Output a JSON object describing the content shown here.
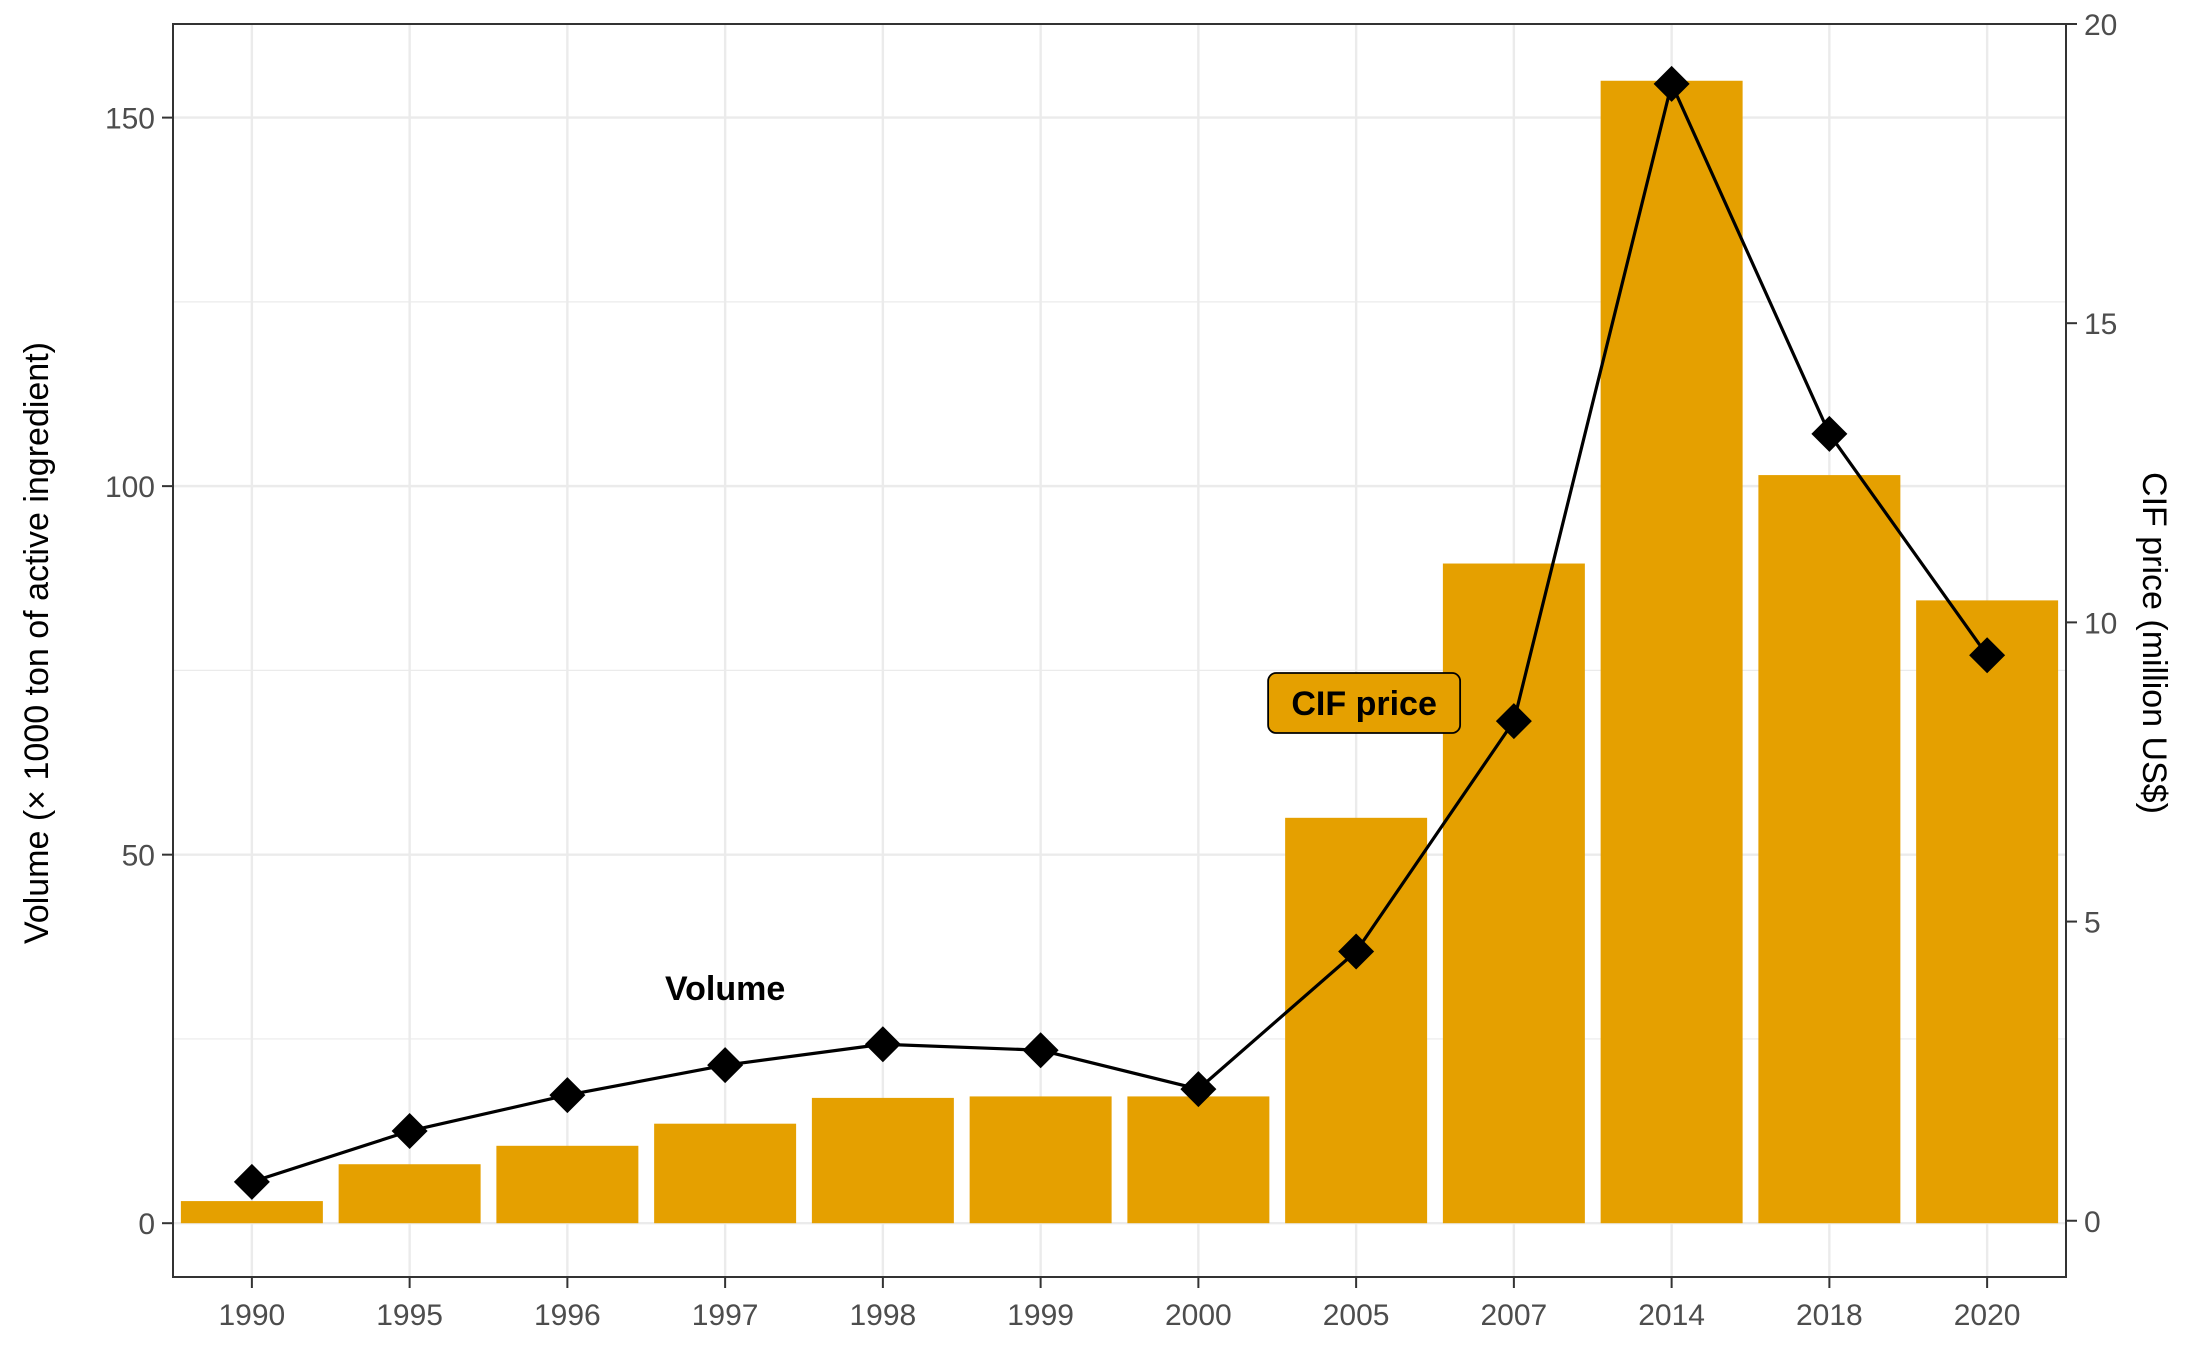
{
  "chart_data": {
    "type": "bar",
    "categories": [
      "1990",
      "1995",
      "1996",
      "1997",
      "1998",
      "1999",
      "2000",
      "2005",
      "2007",
      "2014",
      "2018",
      "2020"
    ],
    "series": [
      {
        "kind": "bar",
        "axis": "left",
        "values": [
          3,
          8,
          10.5,
          13.5,
          17,
          17.2,
          17.2,
          55,
          89.5,
          155,
          101.5,
          84.5
        ]
      },
      {
        "kind": "line",
        "axis": "right",
        "marker": "diamond",
        "values": [
          0.65,
          1.5,
          2.1,
          2.6,
          2.95,
          2.85,
          2.2,
          4.5,
          8.35,
          19.0,
          13.15,
          9.45
        ]
      }
    ],
    "ylabel_left": "Volume (× 1000 ton of active ingredient)",
    "ylabel_right": "CIF price (million US$)",
    "ylim_left": [
      -7.3,
      162.7
    ],
    "ylim_right": [
      -0.94,
      20
    ],
    "yticks_left": [
      0,
      50,
      100,
      150
    ],
    "yticks_right": [
      0,
      5,
      10,
      15,
      20
    ],
    "annotations": [
      {
        "text": "Volume",
        "style": "plain",
        "near_category": "1997"
      },
      {
        "text": "CIF price",
        "style": "label-box",
        "near_category": "2005"
      }
    ],
    "colors": {
      "bar": "#E5A000",
      "line": "#000000",
      "grid": "#EBEBEB",
      "panel_border": "#333333"
    },
    "grid": true
  }
}
